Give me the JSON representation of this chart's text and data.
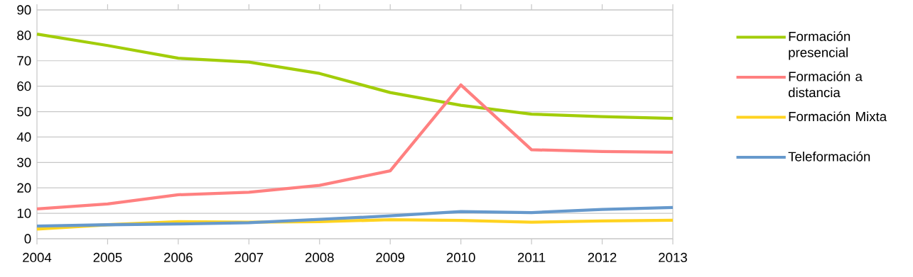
{
  "chart_data": {
    "type": "line",
    "x": [
      2004,
      2005,
      2006,
      2007,
      2008,
      2009,
      2010,
      2011,
      2012,
      2013
    ],
    "series": [
      {
        "name": "Formación presencial",
        "color": "#a2cd0a",
        "values": [
          80.5,
          76,
          71,
          69.5,
          65,
          57.5,
          52.5,
          49,
          48,
          47.3
        ]
      },
      {
        "name": "Formación a distancia",
        "color": "#ff8080",
        "values": [
          11.7,
          13.7,
          17.3,
          18.3,
          21,
          26.7,
          60.5,
          35,
          34.3,
          34
        ]
      },
      {
        "name": "Formación Mixta",
        "color": "#ffd320",
        "values": [
          3.8,
          5.5,
          6.7,
          6.5,
          6.7,
          7.5,
          7.2,
          6.5,
          7,
          7.3
        ]
      },
      {
        "name": "Teleformación",
        "color": "#6699cc",
        "values": [
          5,
          5.5,
          5.8,
          6.3,
          7.6,
          9,
          10.7,
          10.3,
          11.5,
          12.3
        ]
      }
    ],
    "xlim": [
      2004,
      2013
    ],
    "ylim": [
      0,
      90
    ],
    "xticks": [
      2004,
      2005,
      2006,
      2007,
      2008,
      2009,
      2010,
      2011,
      2012,
      2013
    ],
    "yticks": [
      0,
      10,
      20,
      30,
      40,
      50,
      60,
      70,
      80,
      90
    ],
    "grid": "y",
    "legend": "right",
    "line_style": "solid"
  }
}
